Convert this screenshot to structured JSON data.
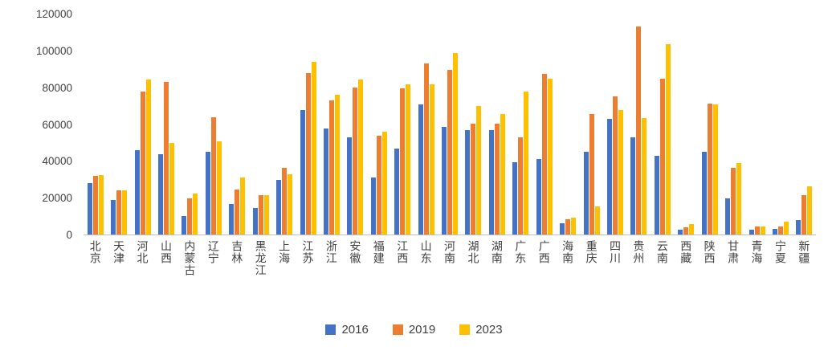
{
  "chart_data": {
    "type": "bar",
    "title": "",
    "xlabel": "",
    "ylabel": "",
    "categories": [
      "北京",
      "天津",
      "河北",
      "山西",
      "内蒙古",
      "辽宁",
      "吉林",
      "黑龙江",
      "上海",
      "江苏",
      "浙江",
      "安徽",
      "福建",
      "江西",
      "山东",
      "河南",
      "湖北",
      "湖南",
      "广东",
      "广西",
      "海南",
      "重庆",
      "四川",
      "贵州",
      "云南",
      "西藏",
      "陕西",
      "甘肃",
      "青海",
      "宁夏",
      "新疆"
    ],
    "series": [
      {
        "name": "2016",
        "color": "#4472C4",
        "values": [
          28000,
          19000,
          46000,
          44000,
          10000,
          45000,
          16500,
          14500,
          30000,
          68000,
          58000,
          53000,
          31000,
          47000,
          71000,
          58500,
          57000,
          57000,
          39500,
          41000,
          6000,
          45000,
          63000,
          53000,
          43000,
          2500,
          45000,
          19500,
          2500,
          3000,
          8000
        ]
      },
      {
        "name": "2019",
        "color": "#ED7D31",
        "values": [
          32000,
          24000,
          78000,
          83000,
          19500,
          64000,
          24500,
          21500,
          36500,
          88000,
          73000,
          80000,
          54000,
          79500,
          93500,
          90000,
          60500,
          60500,
          53000,
          87500,
          8500,
          65500,
          75500,
          113500,
          85000,
          4000,
          71500,
          36500,
          4500,
          4500,
          21500
        ]
      },
      {
        "name": "2023",
        "color": "#FFC000",
        "values": [
          32500,
          24000,
          84500,
          50000,
          22500,
          51000,
          31000,
          21500,
          33000,
          94000,
          76000,
          84500,
          56000,
          82000,
          82000,
          99000,
          70000,
          65500,
          78000,
          85000,
          9000,
          15500,
          68000,
          63500,
          104000,
          5500,
          71000,
          39000,
          4500,
          7000,
          26500
        ]
      }
    ],
    "ylim": [
      0,
      120000
    ],
    "yticks": [
      0,
      20000,
      40000,
      60000,
      80000,
      100000,
      120000
    ],
    "grid": false,
    "legend_position": "bottom",
    "axis_text_color": "#404040",
    "axis_line_color": "#bfbfbf"
  }
}
